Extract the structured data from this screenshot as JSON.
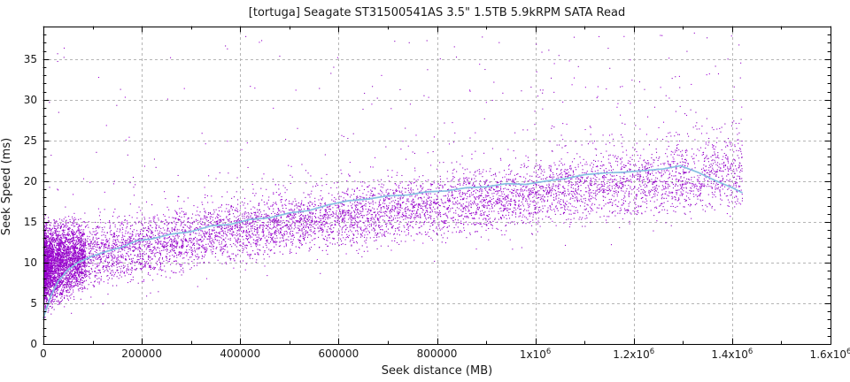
{
  "chart_data": {
    "type": "scatter",
    "title": "[tortuga] Seagate ST31500541AS 3.5\" 1.5TB 5.9kRPM SATA Read",
    "xlabel": "Seek distance (MB)",
    "ylabel": "Seek Speed (ms)",
    "xlim": [
      0,
      1600000
    ],
    "ylim": [
      0,
      39
    ],
    "grid": true,
    "legend": "none",
    "x_ticks": [
      {
        "v": 0,
        "base": "0",
        "exp": ""
      },
      {
        "v": 200000,
        "base": "200000",
        "exp": ""
      },
      {
        "v": 400000,
        "base": "400000",
        "exp": ""
      },
      {
        "v": 600000,
        "base": "600000",
        "exp": ""
      },
      {
        "v": 800000,
        "base": "800000",
        "exp": ""
      },
      {
        "v": 1000000,
        "base": "1x10",
        "exp": "6"
      },
      {
        "v": 1200000,
        "base": "1.2x10",
        "exp": "6"
      },
      {
        "v": 1400000,
        "base": "1.4x10",
        "exp": "6"
      },
      {
        "v": 1600000,
        "base": "1.6x10",
        "exp": "6"
      }
    ],
    "y_ticks": [
      0,
      5,
      10,
      15,
      20,
      25,
      30,
      35
    ],
    "x_minor_step": 100000,
    "y_minor_step": 1,
    "colors": {
      "scatter_palette": [
        "#9400c8",
        "#a000d8",
        "#8a00be"
      ],
      "trend_line": "#86c0e2",
      "grid": "#b5b5b5",
      "axis": "#000000",
      "text": "#1a1a1a"
    },
    "series": [
      {
        "name": "seek-time-samples",
        "type": "scatter",
        "marker": "pixel-dot",
        "x_data_max": 1420000,
        "model": {
          "seed": 1337,
          "n_main": 7800,
          "x_power": 1.25,
          "lower_envelope": {
            "base": 2.8,
            "amp": 13.4,
            "scale": 1450000
          },
          "upper_envelope": {
            "base": 15.0,
            "slope_per_1e6": 8.0
          },
          "jitter": 1.6,
          "outlier_high": {
            "p0": 0.018,
            "p1": 0.06,
            "ceiling": 37.8,
            "power": 2.4
          },
          "outlier_low": {
            "p": 0.004,
            "drop": 2.5
          },
          "left_clump": {
            "n": 2600,
            "range": 85000,
            "x_power": 1.9,
            "top": 15.6
          }
        }
      },
      {
        "name": "smoothed-average",
        "type": "line",
        "width": 1.7,
        "points": [
          [
            0,
            3.2
          ],
          [
            15000,
            5.9
          ],
          [
            30000,
            7.7
          ],
          [
            50000,
            9.1
          ],
          [
            70000,
            10.0
          ],
          [
            100000,
            10.8
          ],
          [
            130000,
            11.4
          ],
          [
            160000,
            11.9
          ],
          [
            190000,
            12.7
          ],
          [
            220000,
            12.9
          ],
          [
            260000,
            13.5
          ],
          [
            300000,
            13.8
          ],
          [
            340000,
            14.5
          ],
          [
            380000,
            14.7
          ],
          [
            420000,
            15.3
          ],
          [
            460000,
            15.5
          ],
          [
            500000,
            16.1
          ],
          [
            540000,
            16.4
          ],
          [
            580000,
            17.1
          ],
          [
            620000,
            17.6
          ],
          [
            660000,
            17.8
          ],
          [
            700000,
            18.2
          ],
          [
            740000,
            18.3
          ],
          [
            780000,
            18.7
          ],
          [
            820000,
            18.8
          ],
          [
            860000,
            19.2
          ],
          [
            900000,
            19.3
          ],
          [
            940000,
            19.7
          ],
          [
            980000,
            19.6
          ],
          [
            1020000,
            20.0
          ],
          [
            1060000,
            20.3
          ],
          [
            1100000,
            20.8
          ],
          [
            1140000,
            21.0
          ],
          [
            1180000,
            21.1
          ],
          [
            1220000,
            21.3
          ],
          [
            1260000,
            21.5
          ],
          [
            1295000,
            21.9
          ],
          [
            1330000,
            21.1
          ],
          [
            1365000,
            20.1
          ],
          [
            1400000,
            19.2
          ],
          [
            1420000,
            18.6
          ]
        ]
      }
    ]
  }
}
